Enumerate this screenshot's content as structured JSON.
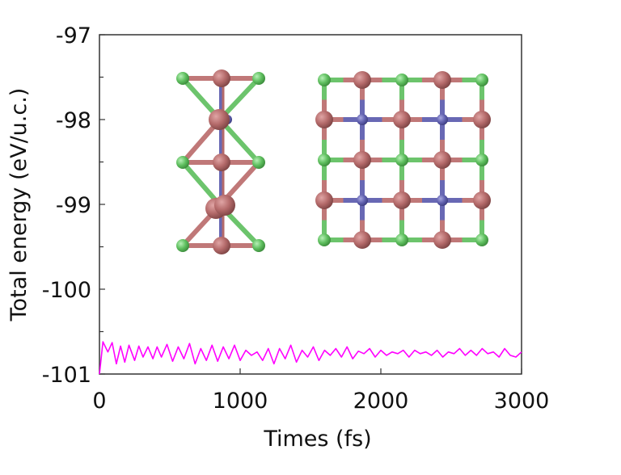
{
  "chart_data": {
    "type": "line",
    "title": "",
    "xlabel": "Times (fs)",
    "ylabel": "Total energy (eV/u.c.)",
    "xlim": [
      0,
      3000
    ],
    "ylim": [
      -101,
      -97
    ],
    "xticks": [
      0,
      1000,
      2000,
      3000
    ],
    "xtick_labels": [
      "0",
      "1000",
      "2000",
      "3000"
    ],
    "yticks": [
      -97,
      -98,
      -99,
      -100,
      -101
    ],
    "ytick_labels": [
      "-97",
      "-98",
      "-99",
      "-100",
      "-101"
    ],
    "grid": false,
    "legend": null,
    "series": [
      {
        "name": "Total energy",
        "color": "#ff00ff",
        "x": [
          0,
          25,
          60,
          90,
          120,
          150,
          180,
          210,
          250,
          280,
          310,
          345,
          380,
          410,
          440,
          480,
          520,
          560,
          600,
          640,
          680,
          720,
          760,
          800,
          840,
          880,
          920,
          960,
          1000,
          1040,
          1080,
          1120,
          1160,
          1200,
          1240,
          1280,
          1320,
          1360,
          1400,
          1440,
          1480,
          1520,
          1560,
          1600,
          1640,
          1680,
          1720,
          1760,
          1800,
          1840,
          1880,
          1920,
          1960,
          2000,
          2040,
          2080,
          2120,
          2160,
          2200,
          2240,
          2280,
          2320,
          2360,
          2400,
          2440,
          2480,
          2520,
          2560,
          2600,
          2640,
          2680,
          2720,
          2760,
          2800,
          2840,
          2880,
          2920,
          2960,
          3000
        ],
        "values": [
          -101.0,
          -100.62,
          -100.74,
          -100.63,
          -100.88,
          -100.67,
          -100.86,
          -100.66,
          -100.84,
          -100.67,
          -100.8,
          -100.68,
          -100.82,
          -100.68,
          -100.8,
          -100.65,
          -100.85,
          -100.68,
          -100.82,
          -100.64,
          -100.88,
          -100.7,
          -100.84,
          -100.66,
          -100.85,
          -100.68,
          -100.82,
          -100.66,
          -100.84,
          -100.72,
          -100.78,
          -100.74,
          -100.84,
          -100.7,
          -100.88,
          -100.7,
          -100.82,
          -100.66,
          -100.86,
          -100.72,
          -100.8,
          -100.68,
          -100.84,
          -100.72,
          -100.78,
          -100.7,
          -100.8,
          -100.68,
          -100.82,
          -100.73,
          -100.76,
          -100.7,
          -100.8,
          -100.72,
          -100.78,
          -100.74,
          -100.76,
          -100.72,
          -100.8,
          -100.72,
          -100.76,
          -100.74,
          -100.78,
          -100.72,
          -100.8,
          -100.74,
          -100.76,
          -100.7,
          -100.78,
          -100.72,
          -100.78,
          -100.7,
          -100.76,
          -100.74,
          -100.8,
          -100.7,
          -100.78,
          -100.8,
          -100.74
        ]
      }
    ],
    "annotations": [
      {
        "type": "image",
        "description": "Side view of atomic structure (inset, left)"
      },
      {
        "type": "image",
        "description": "Top view of atomic lattice (inset, right)"
      }
    ]
  },
  "atom_colors": {
    "large": "#b46a6a",
    "green": "#6cc46c",
    "blue": "#6868b4"
  }
}
